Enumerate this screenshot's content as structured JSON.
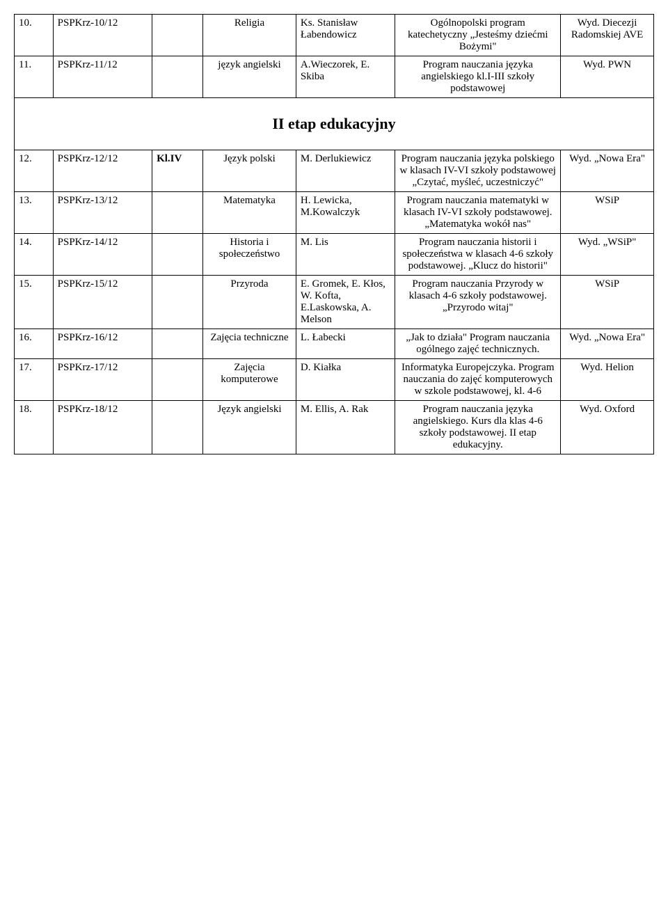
{
  "rows_top": [
    {
      "n": "10.",
      "code": "PSPKrz-10/12",
      "grade": "",
      "subject": "Religia",
      "author": "Ks. Stanisław Łabendowicz",
      "program": "Ogólnopolski program katechetyczny „Jesteśmy dziećmi Bożymi\"",
      "publisher": "Wyd. Diecezji Radomskiej AVE"
    },
    {
      "n": "11.",
      "code": "PSPKrz-11/12",
      "grade": "",
      "subject": "język angielski",
      "author": "A.Wieczorek, E. Skiba",
      "program": "Program nauczania języka angielskiego kl.I-III szkoły podstawowej",
      "publisher": "Wyd. PWN"
    }
  ],
  "section_title": "II etap edukacyjny",
  "rows_bottom": [
    {
      "n": "12.",
      "code": "PSPKrz-12/12",
      "grade": "Kl.IV",
      "subject": "Język polski",
      "author": "M. Derlukiewicz",
      "program": "Program nauczania języka polskiego w klasach IV-VI szkoły podstawowej „Czytać, myśleć, uczestniczyć\"",
      "publisher": "Wyd. „Nowa Era\""
    },
    {
      "n": "13.",
      "code": "PSPKrz-13/12",
      "grade": "",
      "subject": "Matematyka",
      "author": "H. Lewicka, M.Kowalczyk",
      "program": "Program nauczania matematyki w klasach IV-VI szkoły podstawowej. „Matematyka wokół nas\"",
      "publisher": "WSiP"
    },
    {
      "n": "14.",
      "code": "PSPKrz-14/12",
      "grade": "",
      "subject": "Historia i społeczeństwo",
      "author": "M. Lis",
      "program": "Program nauczania historii i społeczeństwa w klasach 4-6 szkoły podstawowej. „Klucz do historii\"",
      "publisher": "Wyd. „WSiP\""
    },
    {
      "n": "15.",
      "code": "PSPKrz-15/12",
      "grade": "",
      "subject": "Przyroda",
      "author": "E. Gromek, E. Kłos, W. Kofta, E.Laskowska, A. Melson",
      "program": "Program nauczania Przyrody w klasach 4-6 szkoły podstawowej. „Przyrodo witaj\"",
      "publisher": "WSiP"
    },
    {
      "n": "16.",
      "code": "PSPKrz-16/12",
      "grade": "",
      "subject": "Zajęcia techniczne",
      "author": "L. Łabecki",
      "program": "„Jak to działa\" Program nauczania ogólnego zajęć technicznych.",
      "publisher": "Wyd. „Nowa Era\""
    },
    {
      "n": "17.",
      "code": "PSPKrz-17/12",
      "grade": "",
      "subject": "Zajęcia komputerowe",
      "author": "D. Kiałka",
      "program": "Informatyka Europejczyka. Program nauczania do zajęć komputerowych w szkole podstawowej, kl. 4-6",
      "publisher": "Wyd. Helion"
    },
    {
      "n": "18.",
      "code": "PSPKrz-18/12",
      "grade": "",
      "subject": "Język angielski",
      "author": "M. Ellis, A. Rak",
      "program": "Program nauczania języka angielskiego. Kurs dla klas 4-6 szkoły podstawowej. II etap edukacyjny.",
      "publisher": "Wyd. Oxford"
    }
  ]
}
